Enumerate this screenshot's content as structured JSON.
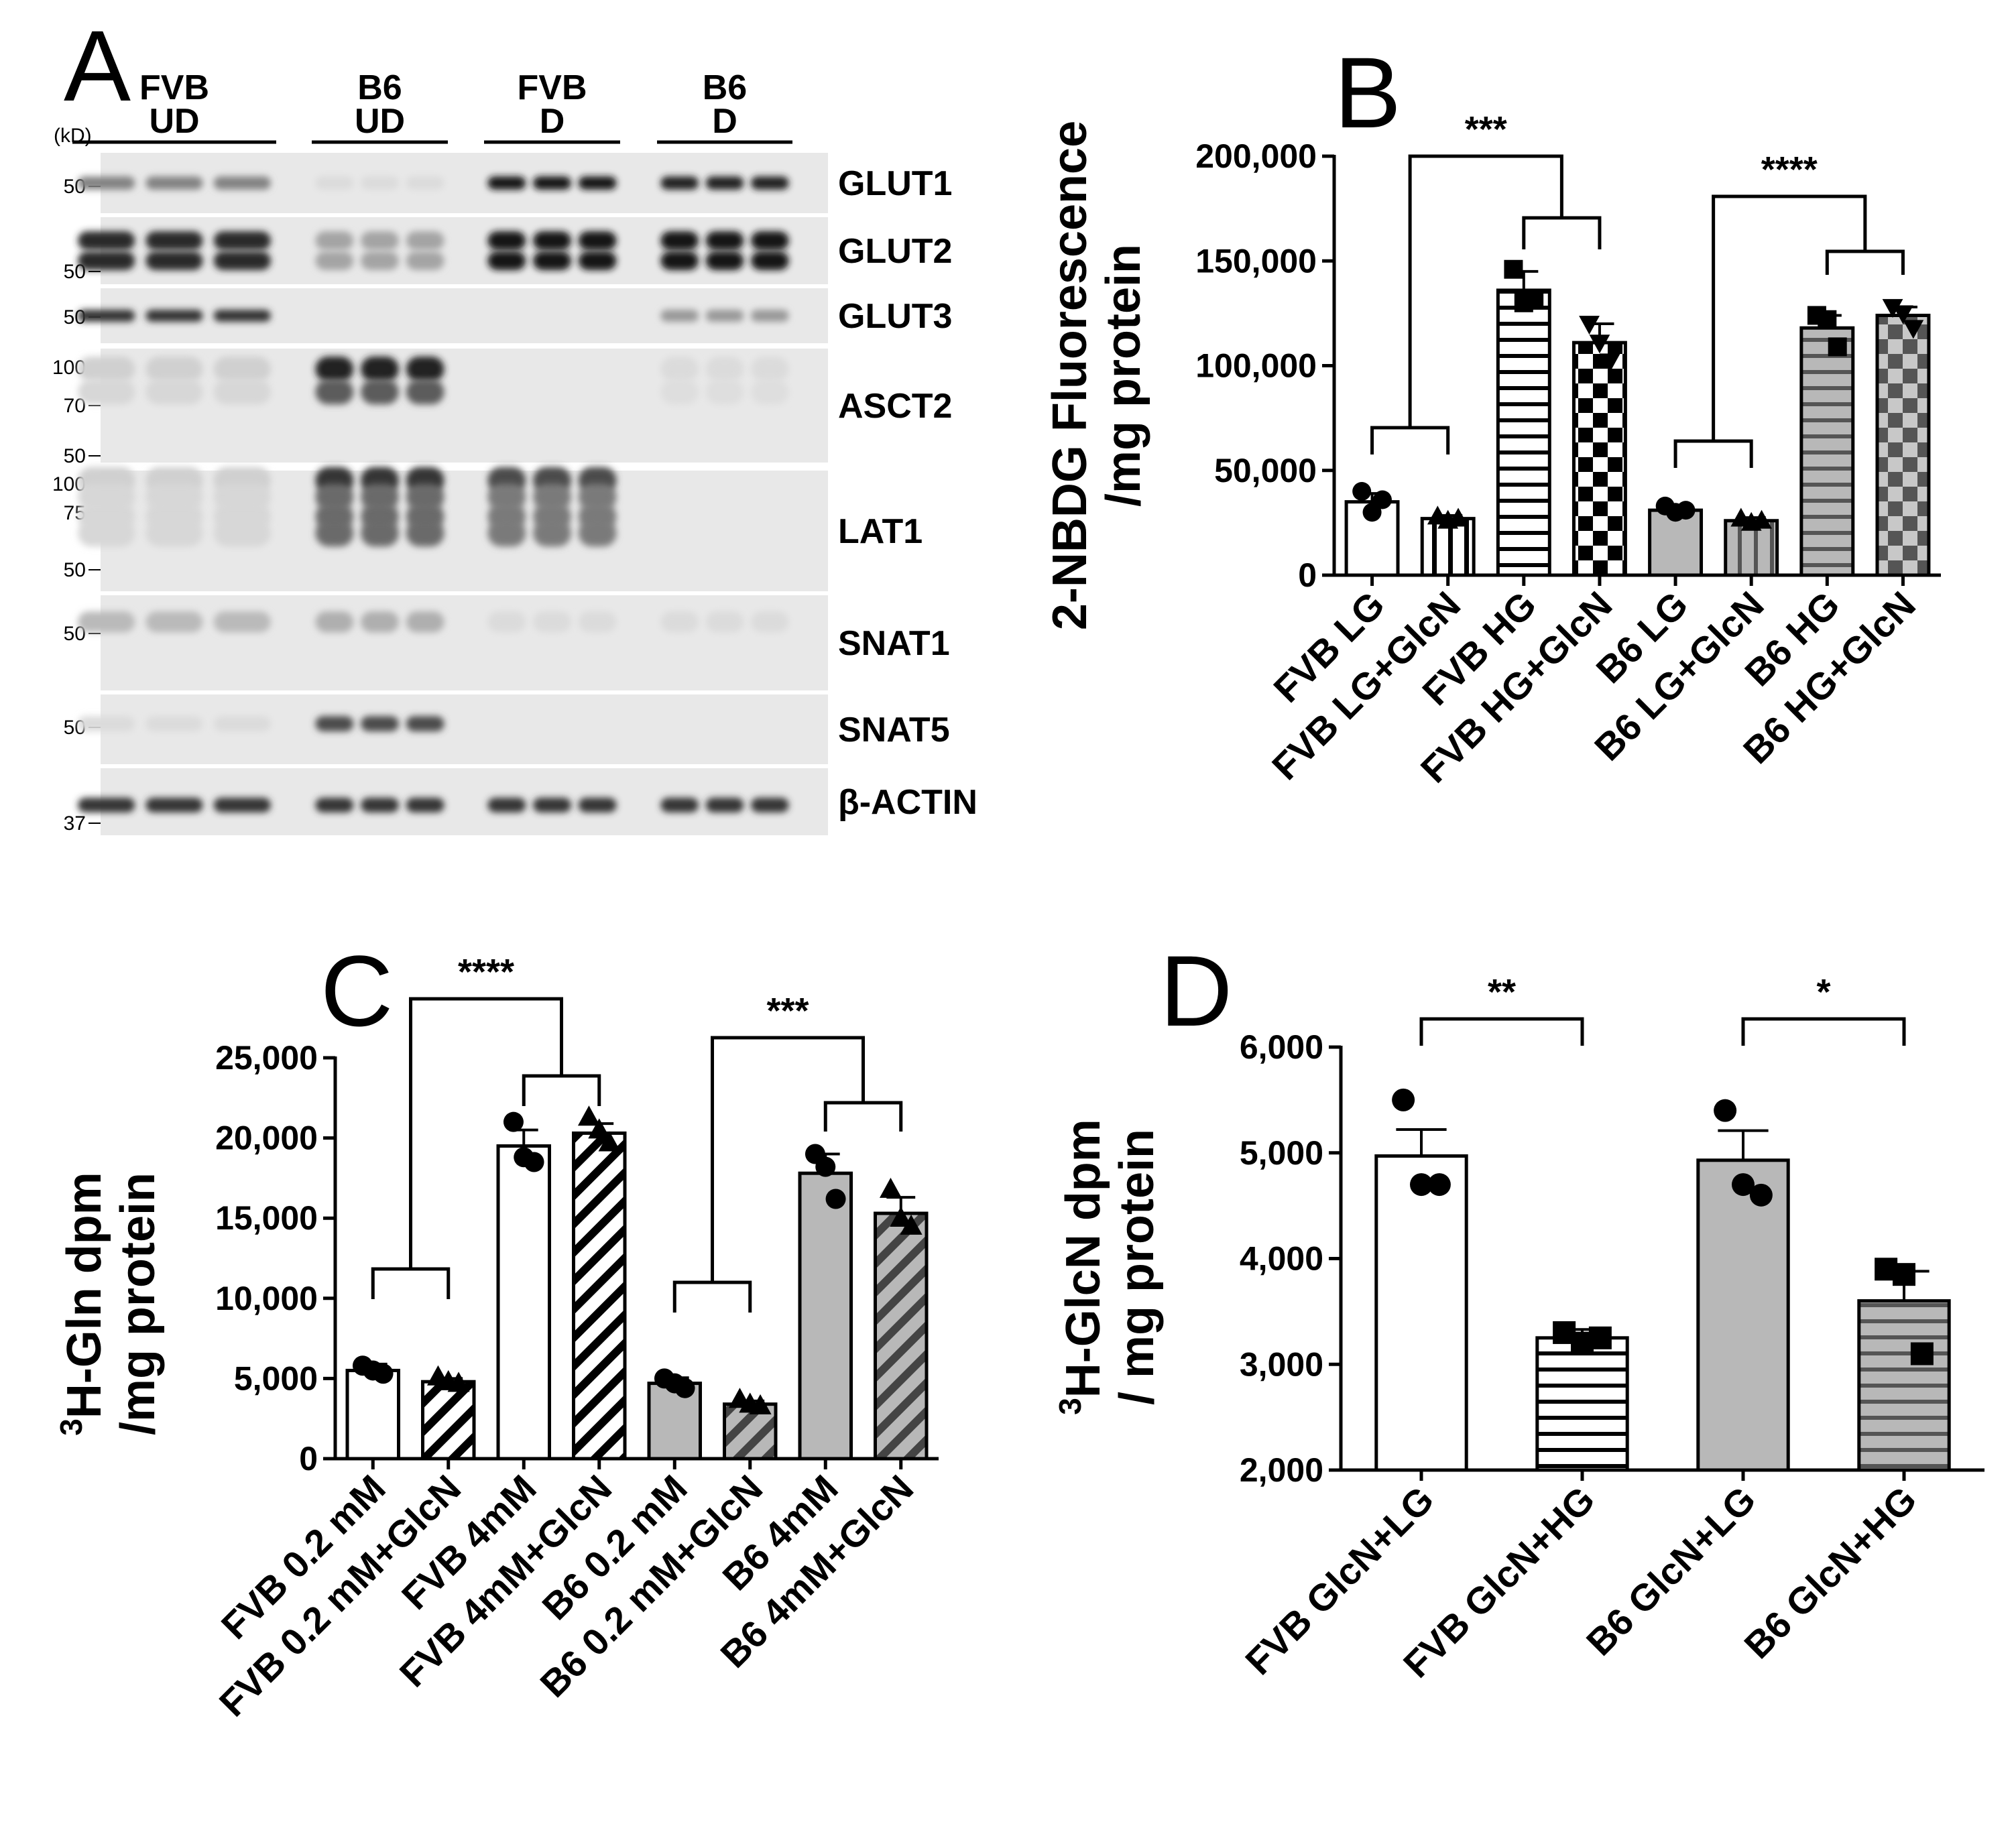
{
  "panel_a": {
    "letter": "A",
    "unit": "(kD)",
    "lanes": [
      {
        "top": "FVB",
        "bottom": "UD"
      },
      {
        "top": "B6",
        "bottom": "UD"
      },
      {
        "top": "FVB",
        "bottom": "D"
      },
      {
        "top": "B6",
        "bottom": "D"
      }
    ],
    "blots": [
      {
        "name": "GLUT1",
        "markers": [
          "50"
        ],
        "group_intensity": [
          0.45,
          0.05,
          0.95,
          0.9
        ]
      },
      {
        "name": "GLUT2",
        "markers": [
          "50"
        ],
        "group_intensity": [
          0.85,
          0.3,
          0.95,
          0.95
        ]
      },
      {
        "name": "GLUT3",
        "markers": [
          "50"
        ],
        "group_intensity": [
          0.8,
          0.0,
          0.0,
          0.35
        ]
      },
      {
        "name": "ASCT2",
        "markers": [
          "100",
          "70",
          "50"
        ],
        "group_intensity": [
          0.1,
          0.9,
          0.0,
          0.05
        ]
      },
      {
        "name": "LAT1",
        "markers": [
          "100",
          "75",
          "50"
        ],
        "group_intensity": [
          0.1,
          0.8,
          0.7,
          0.0
        ]
      },
      {
        "name": "SNAT1",
        "markers": [
          "50"
        ],
        "group_intensity": [
          0.2,
          0.25,
          0.05,
          0.05
        ]
      },
      {
        "name": "SNAT5",
        "markers": [
          "50"
        ],
        "group_intensity": [
          0.05,
          0.7,
          0.0,
          0.0
        ]
      },
      {
        "name": "β-ACTIN",
        "markers": [
          "37"
        ],
        "group_intensity": [
          0.8,
          0.8,
          0.8,
          0.8
        ]
      }
    ]
  },
  "chart_data": [
    {
      "panel": "B",
      "type": "bar",
      "ylabel_line1": "2-NBDG Fluorescence",
      "ylabel_line2": "/mg protein",
      "ylim": [
        0,
        200000
      ],
      "yticks": [
        "0",
        "50,000",
        "100,000",
        "150,000",
        "200,000"
      ],
      "ytick_values": [
        0,
        50000,
        100000,
        150000,
        200000
      ],
      "categories": [
        "FVB LG",
        "FVB LG+GlcN",
        "FVB HG",
        "FVB HG+GlcN",
        "B6 LG",
        "B6 LG+GlcN",
        "B6 HG",
        "B6 HG+GlcN"
      ],
      "values": [
        35000,
        27000,
        136000,
        111000,
        31000,
        26000,
        118000,
        124000
      ],
      "errors": [
        4000,
        1500,
        9000,
        9000,
        2000,
        1500,
        6000,
        4000
      ],
      "points": [
        [
          40000,
          30000,
          36000
        ],
        [
          28000,
          26000,
          27000
        ],
        [
          146000,
          130000,
          132000
        ],
        [
          120000,
          111000,
          102000
        ],
        [
          33000,
          30000,
          31000
        ],
        [
          27000,
          25000,
          26000
        ],
        [
          124000,
          122000,
          109000
        ],
        [
          128000,
          125000,
          118000
        ]
      ],
      "markers": [
        "circle",
        "triangle",
        "square",
        "triangle-down",
        "circle",
        "triangle",
        "square",
        "triangle-down"
      ],
      "fills": [
        "white",
        "v-stripes",
        "h-stripes",
        "checker",
        "gray",
        "gray-v-stripes",
        "gray-h-stripes",
        "gray-checker"
      ],
      "significance": [
        {
          "label": "***",
          "left": [
            0,
            1
          ],
          "right": [
            2,
            3
          ]
        },
        {
          "label": "****",
          "left": [
            4,
            5
          ],
          "right": [
            6,
            7
          ]
        }
      ]
    },
    {
      "panel": "C",
      "type": "bar",
      "ylabel_prefix": "3",
      "ylabel_line1": "H-Gln dpm",
      "ylabel_line2": "/mg protein",
      "ylim": [
        0,
        25000
      ],
      "yticks": [
        "0",
        "5,000",
        "10,000",
        "15,000",
        "20,000",
        "25,000"
      ],
      "ytick_values": [
        0,
        5000,
        10000,
        15000,
        20000,
        25000
      ],
      "categories": [
        "FVB 0.2 mM",
        "FVB 0.2 mM+GlcN",
        "FVB 4mM",
        "FVB 4mM+GlcN",
        "B6 0.2 mM",
        "B6 0.2 mM+GlcN",
        "B6 4mM",
        "B6 4mM+GlcN"
      ],
      "values": [
        5500,
        4800,
        19500,
        20300,
        4700,
        3400,
        17800,
        15300
      ],
      "errors": [
        400,
        200,
        1000,
        600,
        350,
        200,
        1200,
        1000
      ],
      "points": [
        [
          5800,
          5500,
          5300
        ],
        [
          5100,
          4800,
          4700
        ],
        [
          21000,
          18800,
          18500
        ],
        [
          21300,
          20500,
          19700
        ],
        [
          5000,
          4700,
          4400
        ],
        [
          3700,
          3400,
          3300
        ],
        [
          19000,
          18200,
          16200
        ],
        [
          16800,
          15000,
          14500
        ]
      ],
      "markers": [
        "circle",
        "triangle",
        "circle",
        "triangle",
        "circle",
        "triangle",
        "circle",
        "triangle"
      ],
      "fills": [
        "white",
        "diag-stripes",
        "white",
        "diag-stripes",
        "gray",
        "gray-diag-stripes",
        "gray",
        "gray-diag-stripes"
      ],
      "significance": [
        {
          "label": "****",
          "left": [
            0,
            1
          ],
          "right": [
            2,
            3
          ]
        },
        {
          "label": "***",
          "left": [
            4,
            5
          ],
          "right": [
            6,
            7
          ]
        }
      ]
    },
    {
      "panel": "D",
      "type": "bar",
      "ylabel_prefix": "3",
      "ylabel_line1": "H-GlcN dpm",
      "ylabel_line2": "/ mg protein",
      "ylim": [
        2000,
        6000
      ],
      "yticks": [
        "2,000",
        "3,000",
        "4,000",
        "5,000",
        "6,000"
      ],
      "ytick_values": [
        2000,
        3000,
        4000,
        5000,
        6000
      ],
      "categories": [
        "FVB GlcN+LG",
        "FVB GlcN+HG",
        "B6 GlcN+LG",
        "B6 GlcN+HG"
      ],
      "values": [
        4970,
        3250,
        4930,
        3600
      ],
      "errors": [
        250,
        80,
        280,
        280
      ],
      "points": [
        [
          5500,
          4700,
          4700
        ],
        [
          3300,
          3200,
          3250
        ],
        [
          5400,
          4700,
          4600
        ],
        [
          3900,
          3850,
          3100
        ]
      ],
      "markers": [
        "circle",
        "square",
        "circle",
        "square"
      ],
      "fills": [
        "white",
        "h-stripes",
        "gray",
        "gray-h-stripes"
      ],
      "significance": [
        {
          "label": "**",
          "left": [
            0
          ],
          "right": [
            1
          ]
        },
        {
          "label": "*",
          "left": [
            2
          ],
          "right": [
            3
          ]
        }
      ]
    }
  ]
}
